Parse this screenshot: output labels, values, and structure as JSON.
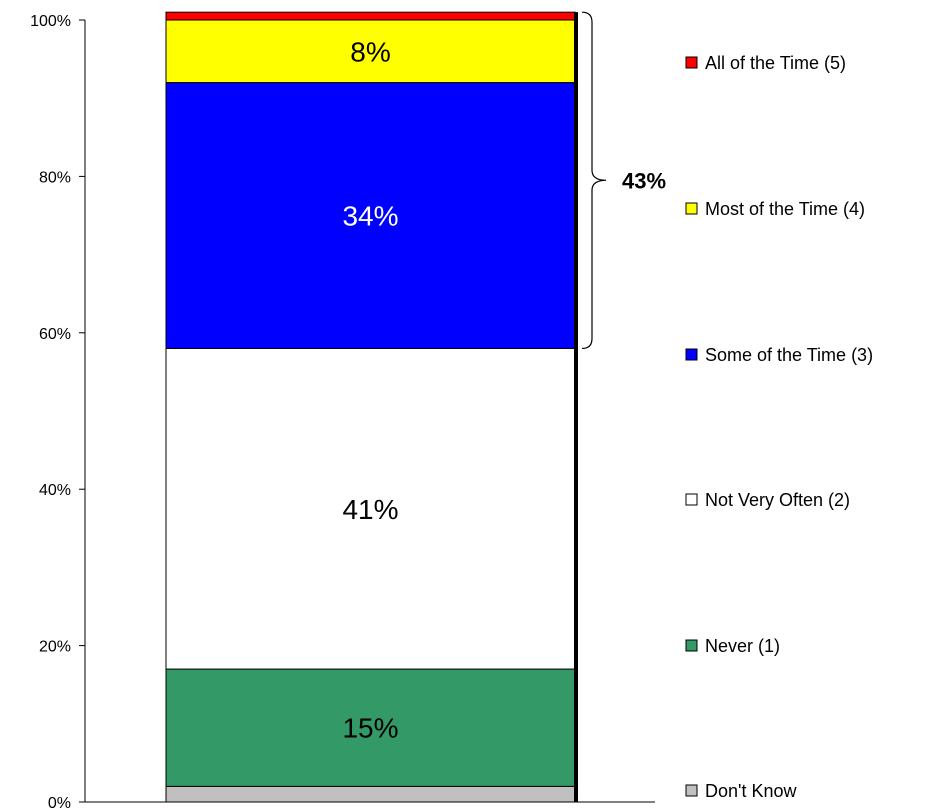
{
  "chart_data": {
    "type": "bar",
    "stacked": true,
    "categories": [
      ""
    ],
    "ylim": [
      0,
      100
    ],
    "yticks": [
      "0%",
      "20%",
      "40%",
      "60%",
      "80%",
      "100%"
    ],
    "grid": false,
    "legend_position": "right",
    "series": [
      {
        "name": "Don't Know",
        "values": [
          2
        ],
        "color": "#c0c0c0",
        "label": ""
      },
      {
        "name": "Never (1)",
        "values": [
          15
        ],
        "color": "#339966",
        "label": "15%"
      },
      {
        "name": "Not Very Often (2)",
        "values": [
          41
        ],
        "color": "#ffffff",
        "label": "41%"
      },
      {
        "name": "Some of the Time (3)",
        "values": [
          34
        ],
        "color": "#0000ff",
        "label": "34%"
      },
      {
        "name": "Most of the Time (4)",
        "values": [
          8
        ],
        "color": "#ffff00",
        "label": "8%"
      },
      {
        "name": "All of the Time (5)",
        "values": [
          1
        ],
        "color": "#ff0000",
        "label": ""
      }
    ],
    "legend_order": [
      "All of the Time (5)",
      "Most of the Time (4)",
      "Some of the Time (3)",
      "Not Very Often (2)",
      "Never (1)",
      "Don't Know"
    ],
    "annotation": {
      "text": "43%",
      "spans": [
        "Some of the Time (3)",
        "Most of the Time (4)",
        "All of the Time (5)"
      ]
    }
  }
}
